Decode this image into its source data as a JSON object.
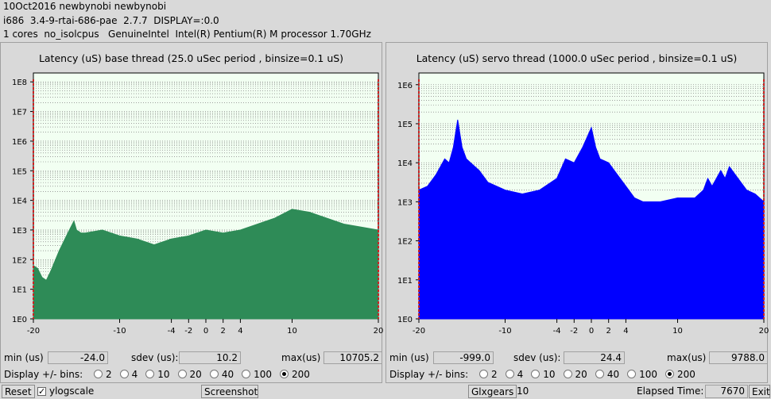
{
  "header": {
    "line1": "10Oct2016 newbynobi newbynobi",
    "line2": "i686  3.4-9-rtai-686-pae  2.7.7  DISPLAY=:0.0",
    "line3": "1 cores  no_isolcpus   GenuineIntel  Intel(R) Pentium(R) M processor 1.70GHz"
  },
  "left": {
    "title": "Latency (uS) base thread (25.0 uSec period , binsize=0.1 uS)",
    "min_label": "min (us)",
    "min_value": "-24.0",
    "sdev_label": "sdev (us):",
    "sdev_value": "10.2",
    "max_label": "max(us)",
    "max_value": "10705.2",
    "bins_label": "Display +/- bins:",
    "bins": [
      "2",
      "4",
      "10",
      "20",
      "40",
      "100",
      "200"
    ],
    "bins_selected": "200",
    "fill_color": "#2e8b57"
  },
  "right": {
    "title": "Latency (uS) servo thread (1000.0 uSec period , binsize=0.1 uS)",
    "min_label": "min (us)",
    "min_value": "-999.0",
    "sdev_label": "sdev (us):",
    "sdev_value": "24.4",
    "max_label": "max(us)",
    "max_value": "9788.0",
    "bins_label": "Display +/- bins:",
    "bins": [
      "2",
      "4",
      "10",
      "20",
      "40",
      "100",
      "200"
    ],
    "bins_selected": "200",
    "fill_color": "#0000ff"
  },
  "footer": {
    "reset_label": "Reset",
    "ylog_label": "ylogscale",
    "ylog_checked": "✓",
    "screenshot_label": "Screenshot",
    "glxgears_label": "Glxgears",
    "glxgears_value": "10",
    "elapsed_label": "Elapsed Time:",
    "elapsed_value": "7670",
    "exit_label": "Exit"
  },
  "chart_data": [
    {
      "type": "area",
      "title": "Latency (uS) base thread (25.0 uSec period , binsize=0.1 uS)",
      "y_scale": "log",
      "yticks": [
        "1E0",
        "1E1",
        "1E2",
        "1E3",
        "1E4",
        "1E5",
        "1E6",
        "1E7",
        "1E8"
      ],
      "xticks": [
        -20,
        -10,
        -4,
        -2,
        0,
        2,
        4,
        10,
        20
      ],
      "xlim": [
        -20,
        20
      ],
      "ylim_exp": [
        0,
        8.3
      ],
      "x": [
        -20,
        -19.5,
        -19,
        -18.5,
        -18,
        -17,
        -16,
        -15.3,
        -15,
        -14.5,
        -14,
        -12,
        -10,
        -8,
        -6,
        -4,
        -2,
        0,
        2,
        4,
        6,
        8,
        10,
        12,
        14,
        16,
        18,
        20
      ],
      "log10_counts": [
        1.8,
        1.7,
        1.4,
        1.3,
        1.6,
        2.3,
        2.9,
        3.3,
        3.0,
        2.9,
        2.9,
        3.0,
        2.8,
        2.7,
        2.5,
        2.7,
        2.8,
        3.0,
        2.9,
        3.0,
        3.2,
        3.4,
        3.7,
        3.6,
        3.4,
        3.2,
        3.1,
        3.0
      ],
      "edge_markers": [
        -20,
        20
      ]
    },
    {
      "type": "area",
      "title": "Latency (uS) servo thread (1000.0 uSec period , binsize=0.1 uS)",
      "y_scale": "log",
      "yticks": [
        "1E0",
        "1E1",
        "1E2",
        "1E3",
        "1E4",
        "1E5",
        "1E6"
      ],
      "xticks": [
        -20,
        -10,
        -4,
        -2,
        0,
        2,
        4,
        10,
        20
      ],
      "xlim": [
        -20,
        20
      ],
      "ylim_exp": [
        0,
        6.3
      ],
      "x": [
        -20,
        -19,
        -18,
        -17,
        -16.5,
        -16,
        -15.5,
        -15,
        -14.5,
        -14,
        -13,
        -12,
        -10,
        -8,
        -6,
        -4,
        -3,
        -2,
        -1,
        0,
        0.5,
        1,
        2,
        3,
        4,
        5,
        6,
        8,
        10,
        12,
        13,
        13.5,
        14,
        15,
        15.5,
        16,
        17,
        18,
        19,
        20
      ],
      "log10_counts": [
        3.3,
        3.4,
        3.7,
        4.1,
        4.0,
        4.4,
        5.1,
        4.4,
        4.1,
        4.0,
        3.8,
        3.5,
        3.3,
        3.2,
        3.3,
        3.6,
        4.1,
        4.0,
        4.4,
        4.9,
        4.4,
        4.1,
        4.0,
        3.7,
        3.4,
        3.1,
        3.0,
        3.0,
        3.1,
        3.1,
        3.3,
        3.6,
        3.4,
        3.8,
        3.6,
        3.9,
        3.6,
        3.3,
        3.2,
        3.0
      ],
      "edge_markers": [
        -20,
        20
      ]
    }
  ]
}
